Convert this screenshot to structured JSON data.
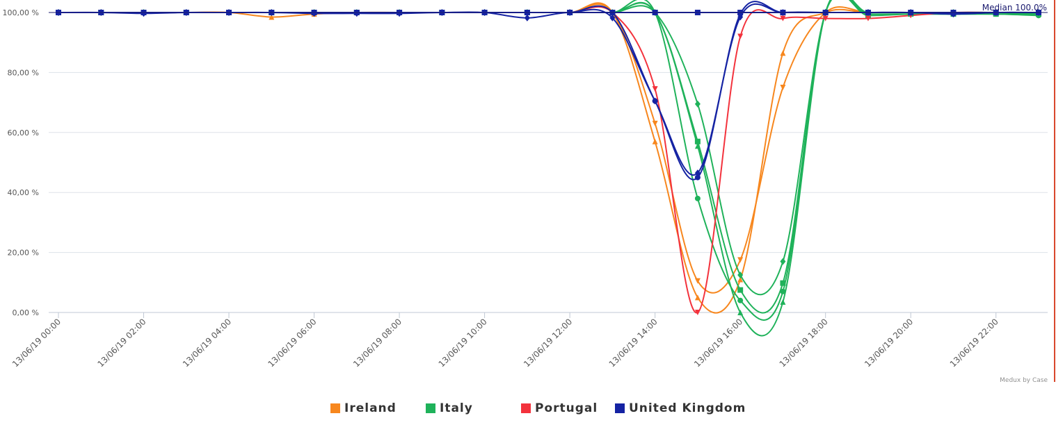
{
  "chart_data": {
    "type": "line",
    "credit": "Medux by Case",
    "median_label": "Median 100.0%",
    "y_ticks": [
      "0,00 %",
      "20,00 %",
      "40,00 %",
      "60,00 %",
      "80,00 %",
      "100,00 %"
    ],
    "y_tick_values": [
      0,
      20,
      40,
      60,
      80,
      100
    ],
    "ylim": [
      0,
      100
    ],
    "x_ticks": [
      "13/06/19 00:00",
      "13/06/19 02:00",
      "13/06/19 04:00",
      "13/06/19 06:00",
      "13/06/19 08:00",
      "13/06/19 10:00",
      "13/06/19 12:00",
      "13/06/19 14:00",
      "13/06/19 16:00",
      "13/06/19 18:00",
      "13/06/19 20:00",
      "13/06/19 22:00"
    ],
    "x_tick_hours": [
      0,
      2,
      4,
      6,
      8,
      10,
      12,
      14,
      16,
      18,
      20,
      22
    ],
    "xlim_hours": [
      0,
      23.4
    ],
    "median": 100,
    "grid": true,
    "legend_position": "bottom",
    "x_hours": [
      0,
      1,
      2,
      3,
      4,
      5,
      6,
      7,
      8,
      9,
      10,
      11,
      12,
      13,
      14,
      15,
      16,
      17,
      18,
      19,
      20,
      21,
      22,
      23
    ],
    "series": [
      {
        "name": "Ireland",
        "color": "#f7871e",
        "marker": "triangle-up",
        "values": [
          100,
          100,
          100,
          100,
          100,
          98.5,
          99.5,
          100,
          100,
          100,
          100,
          100,
          100,
          100,
          57,
          5,
          11,
          86.5,
          100,
          100,
          100,
          100,
          100,
          100
        ]
      },
      {
        "name": "Ireland",
        "color": "#f7871e",
        "marker": "triangle-down",
        "values": [
          100,
          100,
          100,
          100,
          100,
          100,
          100,
          100,
          100,
          100,
          100,
          100,
          100,
          100,
          63,
          10.5,
          17.5,
          75,
          100,
          100,
          100,
          100,
          100,
          100
        ]
      },
      {
        "name": "Italy",
        "color": "#1fb25a",
        "marker": "square",
        "values": [
          100,
          100,
          100,
          100,
          100,
          100,
          100,
          100,
          100,
          100,
          100,
          100,
          100,
          100,
          100,
          57,
          7.5,
          9.8,
          100,
          99,
          99.5,
          99.5,
          99.5,
          99.5
        ]
      },
      {
        "name": "Italy",
        "color": "#1fb25a",
        "marker": "circle",
        "values": [
          100,
          100,
          100,
          100,
          100,
          100,
          100,
          100,
          100,
          100,
          100,
          100,
          100,
          100,
          100,
          38,
          4,
          7,
          100,
          99.5,
          99.5,
          99.5,
          99.5,
          99
        ]
      },
      {
        "name": "Italy",
        "color": "#1fb25a",
        "marker": "triangle-up",
        "values": [
          100,
          100,
          100,
          100,
          100,
          100,
          100,
          100,
          100,
          100,
          100,
          100,
          100,
          100,
          100,
          55.5,
          0,
          3.5,
          100,
          100,
          100,
          100,
          100,
          99.5
        ]
      },
      {
        "name": "Italy",
        "color": "#1fb25a",
        "marker": "diamond",
        "values": [
          100,
          100,
          100,
          100,
          100,
          100,
          100,
          100,
          100,
          100,
          100,
          100,
          100,
          100,
          100,
          69.5,
          12.5,
          17,
          100,
          100,
          100,
          100,
          100,
          100
        ]
      },
      {
        "name": "Portugal",
        "color": "#f3323c",
        "marker": "triangle-down",
        "values": [
          100,
          100,
          100,
          100,
          100,
          100,
          100,
          100,
          100,
          100,
          100,
          100,
          100,
          100,
          74.5,
          0,
          92,
          98,
          98,
          98,
          99,
          100,
          100,
          100
        ]
      },
      {
        "name": "United Kingdom",
        "color": "#1523a3",
        "marker": "circle",
        "values": [
          100,
          100,
          100,
          100,
          100,
          100,
          100,
          100,
          100,
          100,
          100,
          100,
          100,
          100,
          70.5,
          45,
          99.5,
          100,
          100,
          100,
          100,
          99.5,
          100,
          100
        ]
      },
      {
        "name": "United Kingdom",
        "color": "#1523a3",
        "marker": "diamond",
        "values": [
          100,
          100,
          99.7,
          100,
          100,
          100,
          99.7,
          99.7,
          99.7,
          100,
          100,
          98.2,
          100,
          98.2,
          70.5,
          46.5,
          98.5,
          100,
          100,
          100,
          100,
          99.5,
          100,
          100
        ]
      },
      {
        "name": "United Kingdom",
        "color": "#1523a3",
        "marker": "square",
        "values": [
          100,
          100,
          100,
          100,
          100,
          100,
          100,
          100,
          100,
          100,
          100,
          100,
          100,
          100,
          100,
          100,
          100,
          100,
          100,
          100,
          100,
          100,
          100,
          100
        ]
      }
    ],
    "legend": [
      {
        "name": "Ireland",
        "color": "#f7871e"
      },
      {
        "name": "Italy",
        "color": "#1fb25a"
      },
      {
        "name": "Portugal",
        "color": "#f3323c"
      },
      {
        "name": "United Kingdom",
        "color": "#1523a3"
      }
    ]
  }
}
